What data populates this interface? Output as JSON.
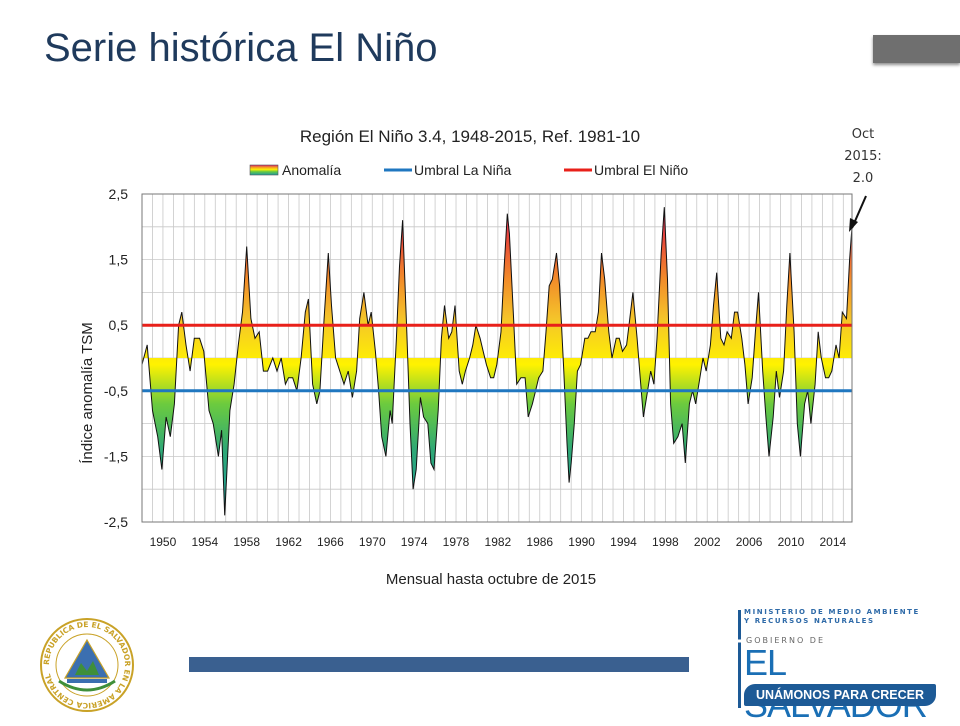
{
  "slide": {
    "title": "Serie histórica El Niño",
    "note_lines": [
      "Oct",
      "2015:",
      "2.0"
    ]
  },
  "seal": {
    "text": "REPUBLICA DE EL SALVADOR EN LA AMERICA CENTRAL"
  },
  "logo": {
    "ministry_line1": "MINISTERIO DE MEDIO AMBIENTE",
    "ministry_line2": "Y RECURSOS NATURALES",
    "gobierno": "GOBIERNO DE",
    "country": "EL SALVADOR",
    "slogan": "UNÁMONOS PARA CRECER"
  },
  "colors": {
    "title": "#1f3a5c",
    "la_nina_line": "#1f77c0",
    "el_nino_line": "#e8201a",
    "gradient": [
      "#1a9ba0",
      "#4fc24a",
      "#b8e03a",
      "#fff200",
      "#f2a02a",
      "#e84a3a",
      "#d61c72"
    ],
    "bottom_bar": "#3a6090"
  },
  "chart_data": {
    "type": "area",
    "title": "Región El Niño 3.4, 1948-2015,  Ref. 1981-10",
    "xlabel": "Mensual hasta octubre de 2015",
    "ylabel": "Índice anomalía TSM",
    "ylim": [
      -2.5,
      2.5
    ],
    "xlim": [
      1948.0,
      2015.83
    ],
    "y_ticks": [
      "2,5",
      "1,5",
      "0,5",
      "-0,5",
      "-1,5",
      "-2,5"
    ],
    "x_ticks": [
      "1950",
      "1954",
      "1958",
      "1962",
      "1966",
      "1970",
      "1974",
      "1978",
      "1982",
      "1986",
      "1990",
      "1994",
      "1998",
      "2002",
      "2006",
      "2010",
      "2014"
    ],
    "legend_placement": "top",
    "grid": true,
    "series": [
      {
        "name": "Anomalía",
        "points": [
          [
            1948.0,
            -0.1
          ],
          [
            1948.5,
            0.2
          ],
          [
            1949.0,
            -0.8
          ],
          [
            1949.5,
            -1.2
          ],
          [
            1949.9,
            -1.7
          ],
          [
            1950.3,
            -0.9
          ],
          [
            1950.7,
            -1.2
          ],
          [
            1951.1,
            -0.7
          ],
          [
            1951.5,
            0.5
          ],
          [
            1951.8,
            0.7
          ],
          [
            1952.2,
            0.2
          ],
          [
            1952.6,
            -0.2
          ],
          [
            1953.0,
            0.3
          ],
          [
            1953.5,
            0.3
          ],
          [
            1953.9,
            0.1
          ],
          [
            1954.4,
            -0.8
          ],
          [
            1954.8,
            -1.0
          ],
          [
            1955.3,
            -1.5
          ],
          [
            1955.6,
            -1.1
          ],
          [
            1955.9,
            -2.4
          ],
          [
            1956.4,
            -0.8
          ],
          [
            1956.8,
            -0.4
          ],
          [
            1957.2,
            0.2
          ],
          [
            1957.6,
            0.7
          ],
          [
            1958.0,
            1.7
          ],
          [
            1958.4,
            0.6
          ],
          [
            1958.8,
            0.3
          ],
          [
            1959.2,
            0.4
          ],
          [
            1959.6,
            -0.2
          ],
          [
            1960.0,
            -0.2
          ],
          [
            1960.5,
            0.0
          ],
          [
            1960.9,
            -0.2
          ],
          [
            1961.3,
            0.0
          ],
          [
            1961.7,
            -0.4
          ],
          [
            1962.0,
            -0.3
          ],
          [
            1962.4,
            -0.3
          ],
          [
            1962.8,
            -0.5
          ],
          [
            1963.2,
            0.0
          ],
          [
            1963.6,
            0.7
          ],
          [
            1963.9,
            0.9
          ],
          [
            1964.3,
            -0.4
          ],
          [
            1964.7,
            -0.7
          ],
          [
            1965.0,
            -0.5
          ],
          [
            1965.4,
            0.6
          ],
          [
            1965.8,
            1.6
          ],
          [
            1966.1,
            0.8
          ],
          [
            1966.5,
            0.0
          ],
          [
            1966.9,
            -0.2
          ],
          [
            1967.3,
            -0.4
          ],
          [
            1967.7,
            -0.2
          ],
          [
            1968.1,
            -0.6
          ],
          [
            1968.5,
            -0.2
          ],
          [
            1968.8,
            0.6
          ],
          [
            1969.2,
            1.0
          ],
          [
            1969.6,
            0.5
          ],
          [
            1969.9,
            0.7
          ],
          [
            1970.3,
            0.1
          ],
          [
            1970.6,
            -0.5
          ],
          [
            1970.9,
            -1.2
          ],
          [
            1971.3,
            -1.5
          ],
          [
            1971.7,
            -0.8
          ],
          [
            1971.9,
            -1.0
          ],
          [
            1972.3,
            0.3
          ],
          [
            1972.6,
            1.4
          ],
          [
            1972.9,
            2.1
          ],
          [
            1973.3,
            0.4
          ],
          [
            1973.6,
            -1.0
          ],
          [
            1973.9,
            -2.0
          ],
          [
            1974.2,
            -1.7
          ],
          [
            1974.6,
            -0.6
          ],
          [
            1974.9,
            -0.9
          ],
          [
            1975.3,
            -1.0
          ],
          [
            1975.6,
            -1.6
          ],
          [
            1975.9,
            -1.7
          ],
          [
            1976.3,
            -0.8
          ],
          [
            1976.6,
            0.3
          ],
          [
            1976.9,
            0.8
          ],
          [
            1977.3,
            0.3
          ],
          [
            1977.6,
            0.4
          ],
          [
            1977.9,
            0.8
          ],
          [
            1978.3,
            -0.2
          ],
          [
            1978.6,
            -0.4
          ],
          [
            1978.9,
            -0.2
          ],
          [
            1979.3,
            0.0
          ],
          [
            1979.6,
            0.2
          ],
          [
            1979.9,
            0.5
          ],
          [
            1980.3,
            0.3
          ],
          [
            1980.6,
            0.1
          ],
          [
            1980.9,
            -0.1
          ],
          [
            1981.3,
            -0.3
          ],
          [
            1981.6,
            -0.3
          ],
          [
            1981.9,
            -0.1
          ],
          [
            1982.3,
            0.4
          ],
          [
            1982.6,
            1.4
          ],
          [
            1982.9,
            2.2
          ],
          [
            1983.1,
            1.9
          ],
          [
            1983.5,
            0.6
          ],
          [
            1983.8,
            -0.4
          ],
          [
            1984.2,
            -0.3
          ],
          [
            1984.6,
            -0.3
          ],
          [
            1984.9,
            -0.9
          ],
          [
            1985.3,
            -0.7
          ],
          [
            1985.6,
            -0.5
          ],
          [
            1985.9,
            -0.3
          ],
          [
            1986.3,
            -0.2
          ],
          [
            1986.6,
            0.4
          ],
          [
            1986.9,
            1.1
          ],
          [
            1987.2,
            1.2
          ],
          [
            1987.6,
            1.6
          ],
          [
            1987.9,
            1.1
          ],
          [
            1988.3,
            -0.2
          ],
          [
            1988.6,
            -1.3
          ],
          [
            1988.8,
            -1.9
          ],
          [
            1989.0,
            -1.6
          ],
          [
            1989.3,
            -1.0
          ],
          [
            1989.6,
            -0.2
          ],
          [
            1989.9,
            -0.1
          ],
          [
            1990.3,
            0.3
          ],
          [
            1990.6,
            0.3
          ],
          [
            1990.9,
            0.4
          ],
          [
            1991.3,
            0.4
          ],
          [
            1991.6,
            0.7
          ],
          [
            1991.9,
            1.6
          ],
          [
            1992.2,
            1.2
          ],
          [
            1992.6,
            0.4
          ],
          [
            1992.9,
            0.0
          ],
          [
            1993.3,
            0.3
          ],
          [
            1993.6,
            0.3
          ],
          [
            1993.9,
            0.1
          ],
          [
            1994.3,
            0.2
          ],
          [
            1994.6,
            0.6
          ],
          [
            1994.9,
            1.0
          ],
          [
            1995.3,
            0.3
          ],
          [
            1995.6,
            -0.3
          ],
          [
            1995.9,
            -0.9
          ],
          [
            1996.3,
            -0.5
          ],
          [
            1996.6,
            -0.2
          ],
          [
            1996.9,
            -0.4
          ],
          [
            1997.2,
            0.3
          ],
          [
            1997.6,
            1.6
          ],
          [
            1997.9,
            2.3
          ],
          [
            1998.2,
            1.2
          ],
          [
            1998.5,
            -0.7
          ],
          [
            1998.8,
            -1.3
          ],
          [
            1999.2,
            -1.2
          ],
          [
            1999.6,
            -1.0
          ],
          [
            1999.9,
            -1.6
          ],
          [
            2000.3,
            -0.7
          ],
          [
            2000.6,
            -0.5
          ],
          [
            2000.9,
            -0.7
          ],
          [
            2001.3,
            -0.3
          ],
          [
            2001.6,
            0.0
          ],
          [
            2001.9,
            -0.2
          ],
          [
            2002.3,
            0.2
          ],
          [
            2002.6,
            0.8
          ],
          [
            2002.9,
            1.3
          ],
          [
            2003.3,
            0.3
          ],
          [
            2003.6,
            0.2
          ],
          [
            2003.9,
            0.4
          ],
          [
            2004.3,
            0.3
          ],
          [
            2004.6,
            0.7
          ],
          [
            2004.9,
            0.7
          ],
          [
            2005.3,
            0.3
          ],
          [
            2005.6,
            -0.1
          ],
          [
            2005.9,
            -0.7
          ],
          [
            2006.3,
            -0.3
          ],
          [
            2006.6,
            0.4
          ],
          [
            2006.9,
            1.0
          ],
          [
            2007.3,
            -0.2
          ],
          [
            2007.6,
            -0.9
          ],
          [
            2007.9,
            -1.5
          ],
          [
            2008.3,
            -0.9
          ],
          [
            2008.6,
            -0.2
          ],
          [
            2008.9,
            -0.6
          ],
          [
            2009.3,
            -0.2
          ],
          [
            2009.6,
            0.8
          ],
          [
            2009.9,
            1.6
          ],
          [
            2010.3,
            0.4
          ],
          [
            2010.6,
            -1.0
          ],
          [
            2010.9,
            -1.5
          ],
          [
            2011.3,
            -0.7
          ],
          [
            2011.6,
            -0.5
          ],
          [
            2011.9,
            -1.0
          ],
          [
            2012.3,
            -0.4
          ],
          [
            2012.6,
            0.4
          ],
          [
            2012.9,
            0.0
          ],
          [
            2013.3,
            -0.3
          ],
          [
            2013.6,
            -0.3
          ],
          [
            2013.9,
            -0.2
          ],
          [
            2014.3,
            0.2
          ],
          [
            2014.6,
            0.0
          ],
          [
            2014.9,
            0.7
          ],
          [
            2015.3,
            0.6
          ],
          [
            2015.6,
            1.5
          ],
          [
            2015.83,
            2.0
          ]
        ]
      },
      {
        "name": "Umbral La Niña",
        "value": -0.5
      },
      {
        "name": "Umbral El Niño",
        "value": 0.5
      }
    ]
  }
}
